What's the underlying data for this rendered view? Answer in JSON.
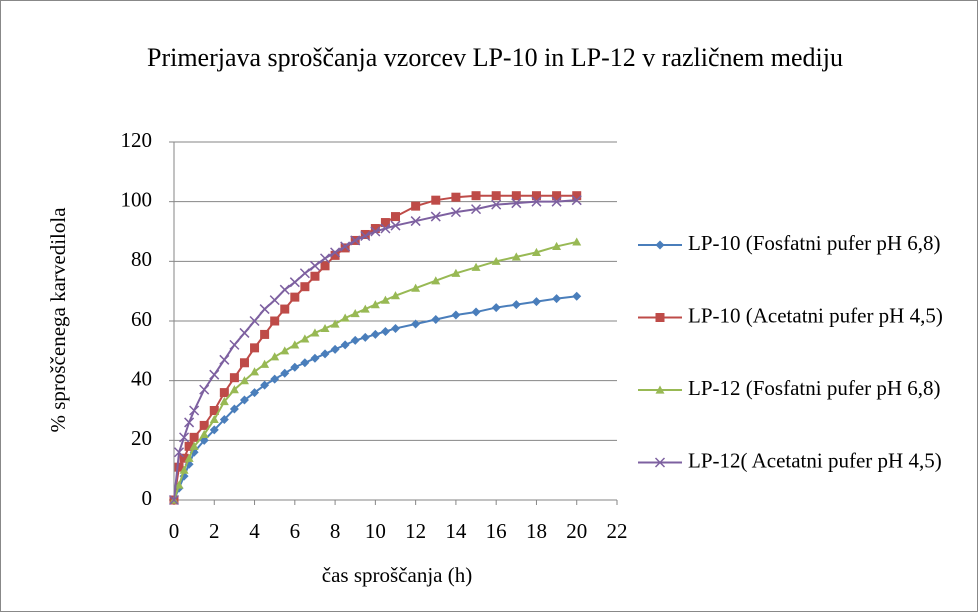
{
  "chart_data": {
    "type": "line",
    "title": "Primerjava sproščanja vzorcev LP-10 in LP-12 v različnem mediju",
    "x_label": "čas sproščanja (h)",
    "y_label": "% sproščenega karvedilola",
    "x": [
      0,
      0.25,
      0.5,
      0.75,
      1,
      1.5,
      2,
      2.5,
      3,
      3.5,
      4,
      4.5,
      5,
      5.5,
      6,
      6.5,
      7,
      7.5,
      8,
      8.5,
      9,
      9.5,
      10,
      10.5,
      11,
      12,
      13,
      14,
      15,
      16,
      17,
      18,
      19,
      20
    ],
    "series": [
      {
        "name": "LP-10 (Fosfatni pufer pH 6,8)",
        "color": "#4a7ebb",
        "marker": "diamond",
        "values": [
          0,
          4,
          8,
          12,
          16,
          20,
          23.5,
          27,
          30.5,
          33.5,
          36,
          38.5,
          40.5,
          42.5,
          44.5,
          46,
          47.5,
          49,
          50.5,
          52,
          53.5,
          54.5,
          55.5,
          56.5,
          57.5,
          59,
          60.5,
          62,
          63,
          64.5,
          65.5,
          66.5,
          67.5,
          68.3
        ]
      },
      {
        "name": "LP-10 (Acetatni pufer pH 4,5)",
        "color": "#be4b48",
        "marker": "square",
        "values": [
          0,
          11,
          14,
          18,
          21,
          25,
          30,
          36,
          41,
          46,
          51,
          55.5,
          60,
          64,
          68,
          71.5,
          75,
          78.5,
          82,
          84.5,
          87,
          89,
          91,
          93,
          95,
          98.5,
          100.5,
          101.5,
          102,
          102,
          102,
          102,
          102,
          102
        ]
      },
      {
        "name": "LP-12 (Fosfatni pufer pH 6,8)",
        "color": "#98b954",
        "marker": "triangle",
        "values": [
          0,
          5,
          10,
          14,
          18,
          22,
          27,
          33,
          37,
          40,
          43,
          45.5,
          48,
          50,
          52,
          54,
          56,
          57.5,
          59,
          61,
          62.5,
          64,
          65.5,
          67,
          68.5,
          71,
          73.5,
          76,
          78,
          80,
          81.5,
          83,
          85,
          86.5
        ]
      },
      {
        "name": "LP-12( Acetatni pufer pH 4,5)",
        "color": "#7d60a0",
        "marker": "x",
        "values": [
          0,
          16,
          21,
          26,
          30,
          37,
          42,
          47,
          52,
          56,
          60,
          64,
          67,
          70.5,
          73,
          76,
          78.5,
          81,
          83,
          85,
          87,
          88.5,
          90,
          91,
          92,
          93.5,
          95,
          96.5,
          97.5,
          99,
          99.5,
          100,
          100,
          100.5
        ]
      }
    ],
    "xlim": [
      0,
      22
    ],
    "xticks": [
      0,
      2,
      4,
      6,
      8,
      10,
      12,
      14,
      16,
      18,
      20,
      22
    ],
    "ylim": [
      0,
      120
    ],
    "yticks": [
      0,
      20,
      40,
      60,
      80,
      100,
      120
    ],
    "grid": true,
    "legend": "right"
  }
}
